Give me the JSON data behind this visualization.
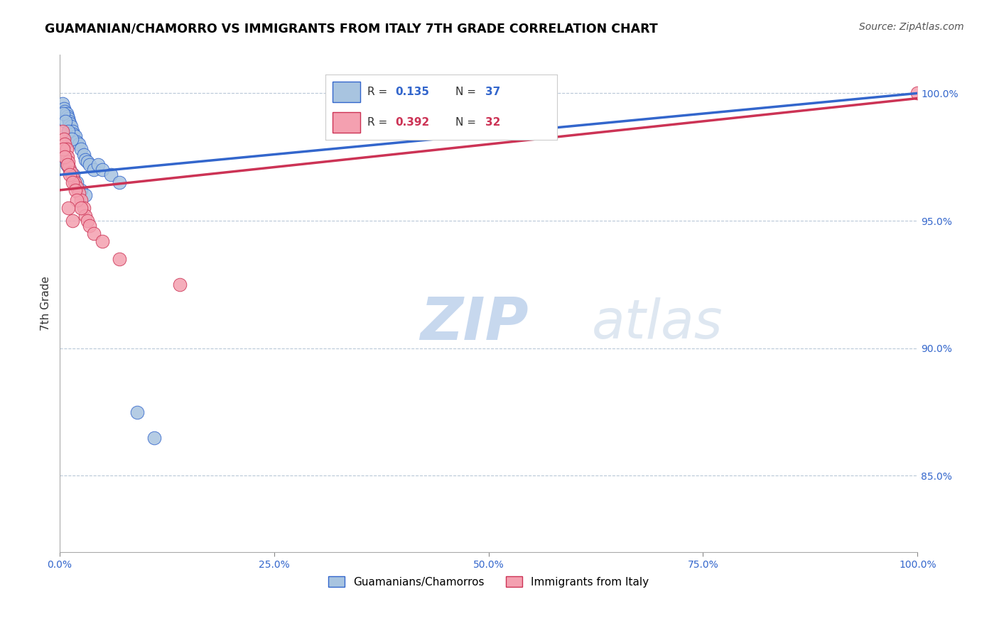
{
  "title": "GUAMANIAN/CHAMORRO VS IMMIGRANTS FROM ITALY 7TH GRADE CORRELATION CHART",
  "source_text": "Source: ZipAtlas.com",
  "xlabel": "",
  "ylabel": "7th Grade",
  "xlim": [
    0.0,
    100.0
  ],
  "ylim": [
    82.0,
    101.5
  ],
  "r_blue": 0.135,
  "n_blue": 37,
  "r_pink": 0.392,
  "n_pink": 32,
  "blue_color": "#a8c4e0",
  "pink_color": "#f4a0b0",
  "blue_line_color": "#3366cc",
  "pink_line_color": "#cc3355",
  "ytick_labels": [
    "85.0%",
    "90.0%",
    "95.0%",
    "100.0%"
  ],
  "ytick_values": [
    85.0,
    90.0,
    95.0,
    100.0
  ],
  "xtick_labels": [
    "0.0%",
    "25.0%",
    "50.0%",
    "75.0%",
    "100.0%"
  ],
  "xtick_values": [
    0.0,
    25.0,
    50.0,
    75.0,
    100.0
  ],
  "blue_scatter_x": [
    0.3,
    0.5,
    0.6,
    0.8,
    0.9,
    1.0,
    1.1,
    1.2,
    1.3,
    1.5,
    1.6,
    1.8,
    2.0,
    2.2,
    2.5,
    2.8,
    3.0,
    3.2,
    3.5,
    4.0,
    0.4,
    0.7,
    1.0,
    1.4,
    0.5,
    0.8,
    1.2,
    1.6,
    2.0,
    2.5,
    3.0,
    4.5,
    5.0,
    6.0,
    7.0,
    9.0,
    11.0
  ],
  "blue_scatter_y": [
    99.6,
    99.4,
    99.3,
    99.2,
    99.1,
    99.0,
    98.9,
    98.8,
    98.7,
    98.5,
    98.4,
    98.3,
    98.1,
    98.0,
    97.8,
    97.6,
    97.4,
    97.3,
    97.2,
    97.0,
    99.2,
    98.9,
    98.5,
    98.2,
    97.5,
    97.2,
    97.0,
    96.8,
    96.5,
    96.2,
    96.0,
    97.2,
    97.0,
    96.8,
    96.5,
    87.5,
    86.5
  ],
  "pink_scatter_x": [
    0.3,
    0.5,
    0.6,
    0.8,
    0.9,
    1.0,
    1.1,
    1.3,
    1.5,
    1.7,
    2.0,
    2.2,
    2.5,
    2.8,
    3.0,
    0.4,
    0.6,
    0.9,
    1.2,
    1.5,
    1.8,
    2.0,
    2.5,
    3.2,
    3.5,
    4.0,
    5.0,
    7.0,
    14.0,
    1.0,
    1.5,
    100.0
  ],
  "pink_scatter_y": [
    98.5,
    98.2,
    98.0,
    97.8,
    97.5,
    97.3,
    97.1,
    96.9,
    96.7,
    96.5,
    96.3,
    96.1,
    95.8,
    95.5,
    95.2,
    97.8,
    97.5,
    97.2,
    96.8,
    96.5,
    96.2,
    95.8,
    95.5,
    95.0,
    94.8,
    94.5,
    94.2,
    93.5,
    92.5,
    95.5,
    95.0,
    100.0
  ],
  "watermark_zip": "ZIP",
  "watermark_atlas": "atlas",
  "watermark_color": "#c8d8ee",
  "legend_label_blue": "Guamanians/Chamorros",
  "legend_label_pink": "Immigrants from Italy",
  "trendline_blue_x0": 0.0,
  "trendline_blue_y0": 96.8,
  "trendline_blue_x1": 100.0,
  "trendline_blue_y1": 100.0,
  "trendline_pink_x0": 0.0,
  "trendline_pink_y0": 96.2,
  "trendline_pink_x1": 100.0,
  "trendline_pink_y1": 99.8
}
